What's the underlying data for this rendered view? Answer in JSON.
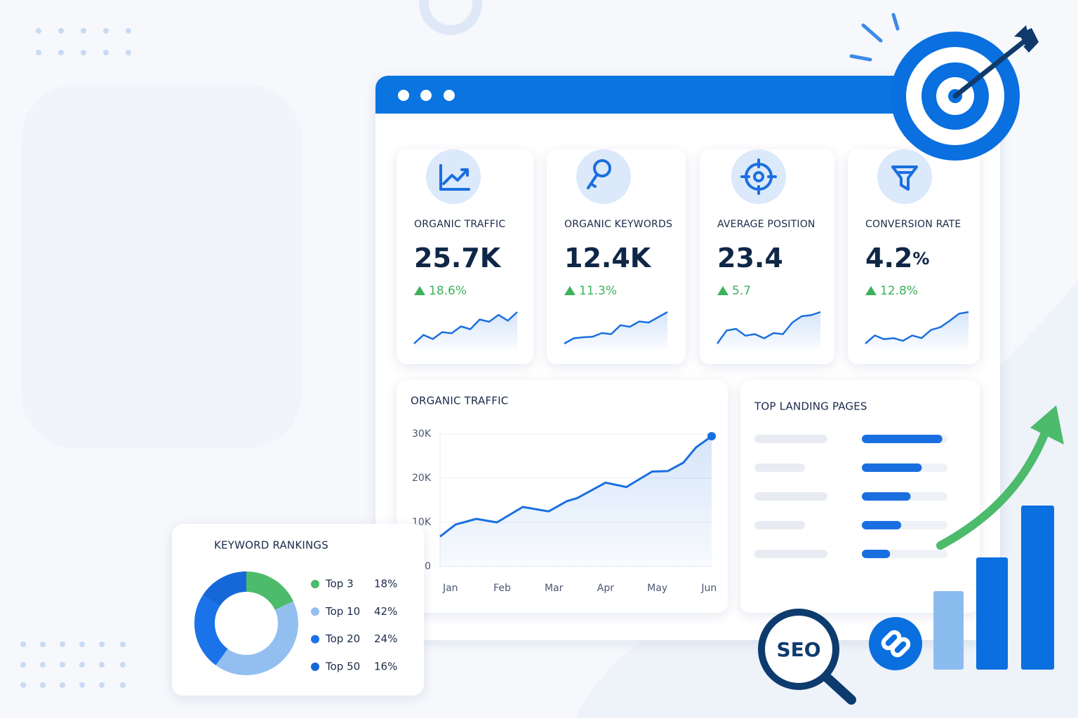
{
  "kpis": [
    {
      "label": "ORGANIC TRAFFIC",
      "value": "25.7K",
      "change": "18.6%",
      "sparkline": [
        20,
        35,
        28,
        40,
        38,
        50,
        45,
        62,
        58,
        70,
        60,
        75
      ]
    },
    {
      "label": "ORGANIC KEYWORDS",
      "value": "12.4K",
      "change": "11.3%",
      "sparkline": [
        20,
        30,
        32,
        33,
        40,
        38,
        55,
        52,
        62,
        60,
        70,
        80
      ]
    },
    {
      "label": "AVERAGE POSITION",
      "value": "23.4",
      "change": "5.7",
      "sparkline": [
        20,
        45,
        48,
        35,
        38,
        30,
        40,
        38,
        60,
        72,
        74,
        80
      ]
    },
    {
      "label": "CONVERSION RATE",
      "value": "4.2",
      "unit": "%",
      "change": "12.8%",
      "sparkline": [
        20,
        35,
        28,
        30,
        25,
        35,
        30,
        45,
        50,
        62,
        75,
        78
      ]
    }
  ],
  "chart_data": {
    "type": "line",
    "title": "ORGANIC TRAFFIC",
    "x": [
      -0.2,
      0.1,
      0.5,
      0.9,
      1.4,
      1.9,
      2.25,
      2.45,
      3.0,
      3.4,
      3.9,
      4.2,
      4.5,
      4.75,
      5.05
    ],
    "series": [
      {
        "name": "Organic traffic",
        "color": "#1a6fe0",
        "values": [
          6800,
          9500,
          10800,
          10000,
          13500,
          12500,
          14800,
          15500,
          19000,
          18000,
          21500,
          21600,
          23500,
          27000,
          29500
        ]
      }
    ],
    "xlim": [
      -0.2,
      5.05
    ],
    "xticks": [
      {
        "value": 0,
        "label": "Jan"
      },
      {
        "value": 1,
        "label": "Feb"
      },
      {
        "value": 2,
        "label": "Mar"
      },
      {
        "value": 3,
        "label": "Apr"
      },
      {
        "value": 4,
        "label": "May"
      },
      {
        "value": 5,
        "label": "Jun"
      }
    ],
    "ylim": [
      0,
      30000
    ],
    "yticks": [
      0,
      {
        "value": 10000,
        "label": "10K"
      },
      {
        "value": 20000,
        "label": "20K"
      },
      {
        "value": 30000,
        "label": "30K"
      }
    ],
    "grid": true
  },
  "landing_pages": {
    "title": "TOP LANDING PAGES",
    "xlim": [
      0,
      100
    ],
    "values": [
      94,
      70,
      57,
      46,
      33
    ],
    "color": "#1a6fe0"
  },
  "keyword_rankings": {
    "type": "donut",
    "title": "KEYWORD RANKINGS",
    "categories": [
      "Top 3",
      "Top 10",
      "Top 20",
      "Top 50"
    ],
    "values": [
      18,
      42,
      24,
      16
    ],
    "value_labels": [
      "18%",
      "42%",
      "24%",
      "16%"
    ],
    "colors": [
      "#4cbb6c",
      "#93bff0",
      "#1a73e8",
      "#1668d8"
    ]
  },
  "badge": "SEO"
}
